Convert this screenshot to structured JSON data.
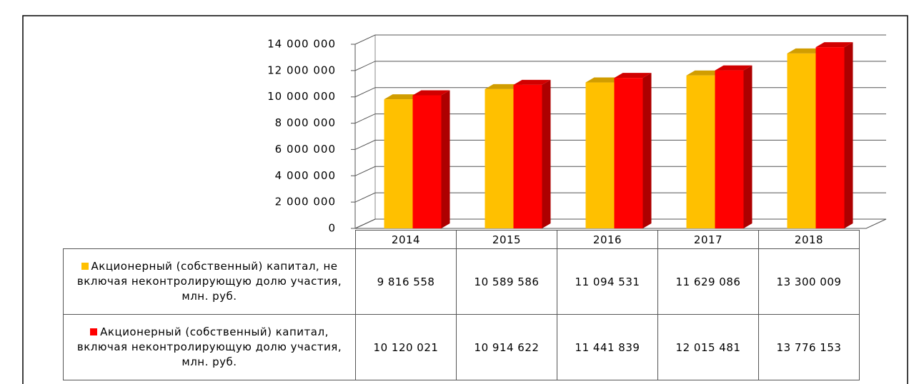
{
  "chart_data": {
    "type": "bar3d",
    "categories": [
      "2014",
      "2015",
      "2016",
      "2017",
      "2018"
    ],
    "series": [
      {
        "name": "Акционерный (собственный) капитал,   не включая неконтролирующую долю участия, млн. руб.",
        "color": "#ffc000",
        "values": [
          9816558,
          10589586,
          11094531,
          11629086,
          13300009
        ],
        "value_labels": [
          "9 816 558",
          "10 589 586",
          "11 094 531",
          "11 629 086",
          "13 300 009"
        ]
      },
      {
        "name": "Акционерный (собственный) капитал,   включая неконтролирующую долю участия, млн. руб.",
        "color": "#ff0000",
        "values": [
          10120021,
          10914622,
          11441839,
          12015481,
          13776153
        ],
        "value_labels": [
          "10 120 021",
          "10 914 622",
          "11 441 839",
          "12 015 481",
          "13 776 153"
        ]
      }
    ],
    "ylim": [
      0,
      14000000
    ],
    "yticks": [
      0,
      {
        "value": 2000000,
        "label": "2 000 000"
      },
      {
        "value": 4000000,
        "label": "4 000 000"
      },
      {
        "value": 6000000,
        "label": "6 000 000"
      },
      {
        "value": 8000000,
        "label": "8 000 000"
      },
      {
        "value": 10000000,
        "label": "10 000 000"
      },
      {
        "value": 12000000,
        "label": "12 000 000"
      },
      {
        "value": 14000000,
        "label": "14 000 000"
      }
    ],
    "grid": true,
    "data_table": true
  }
}
